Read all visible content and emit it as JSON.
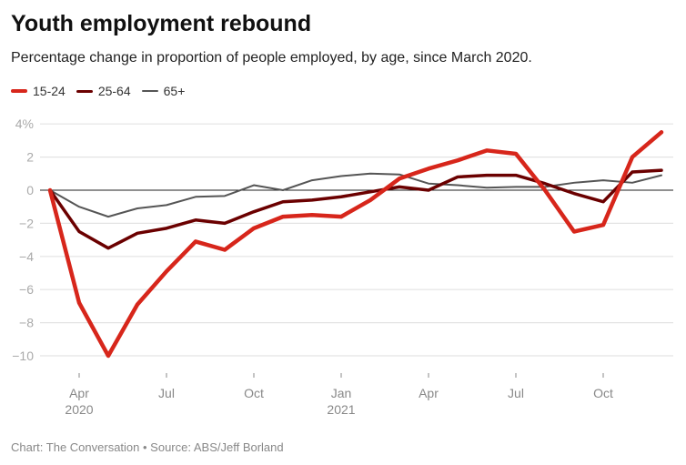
{
  "chart_data": {
    "type": "line",
    "title": "Youth employment rebound",
    "subtitle": "Percentage change in proportion of people employed, by age, since March 2020.",
    "x": [
      "2020-03",
      "2020-04",
      "2020-05",
      "2020-06",
      "2020-07",
      "2020-08",
      "2020-09",
      "2020-10",
      "2020-11",
      "2020-12",
      "2021-01",
      "2021-02",
      "2021-03",
      "2021-04",
      "2021-05",
      "2021-06",
      "2021-07",
      "2021-08",
      "2021-09",
      "2021-10",
      "2021-11",
      "2021-12"
    ],
    "series": [
      {
        "name": "15-24",
        "color": "#d7261b",
        "values": [
          0,
          -6.8,
          -10,
          -6.9,
          -4.9,
          -3.1,
          -3.6,
          -2.3,
          -1.6,
          -1.5,
          -1.6,
          -0.6,
          0.7,
          1.3,
          1.8,
          2.4,
          2.2,
          0,
          -2.5,
          -2.1,
          2.0,
          3.5
        ]
      },
      {
        "name": "25-64",
        "color": "#6b0000",
        "values": [
          0,
          -2.5,
          -3.5,
          -2.6,
          -2.3,
          -1.8,
          -2.0,
          -1.3,
          -0.7,
          -0.6,
          -0.4,
          -0.1,
          0.2,
          0,
          0.8,
          0.9,
          0.9,
          0.4,
          -0.2,
          -0.7,
          1.1,
          1.2
        ]
      },
      {
        "name": "65+",
        "color": "#555555",
        "values": [
          0,
          -1.0,
          -1.6,
          -1.1,
          -0.9,
          -0.4,
          -0.35,
          0.3,
          0,
          0.6,
          0.85,
          1.0,
          0.95,
          0.4,
          0.3,
          0.15,
          0.2,
          0.2,
          0.45,
          0.6,
          0.45,
          0.9
        ]
      }
    ],
    "ylim": [
      -10,
      4
    ],
    "yticks": [
      {
        "v": 4,
        "label": "4%"
      },
      {
        "v": 2,
        "label": "2"
      },
      {
        "v": 0,
        "label": "0"
      },
      {
        "v": -2,
        "label": "−2"
      },
      {
        "v": -4,
        "label": "−4"
      },
      {
        "v": -6,
        "label": "−6"
      },
      {
        "v": -8,
        "label": "−8"
      },
      {
        "v": -10,
        "label": "−10"
      }
    ],
    "xticks": [
      {
        "i": 1,
        "label": "Apr",
        "sub": "2020"
      },
      {
        "i": 4,
        "label": "Jul",
        "sub": ""
      },
      {
        "i": 7,
        "label": "Oct",
        "sub": ""
      },
      {
        "i": 10,
        "label": "Jan",
        "sub": "2021"
      },
      {
        "i": 13,
        "label": "Apr",
        "sub": ""
      },
      {
        "i": 16,
        "label": "Jul",
        "sub": ""
      },
      {
        "i": 19,
        "label": "Oct",
        "sub": ""
      }
    ],
    "grid": true,
    "legend": "top-left"
  },
  "footer": "Chart: The Conversation • Source: ABS/Jeff Borland"
}
